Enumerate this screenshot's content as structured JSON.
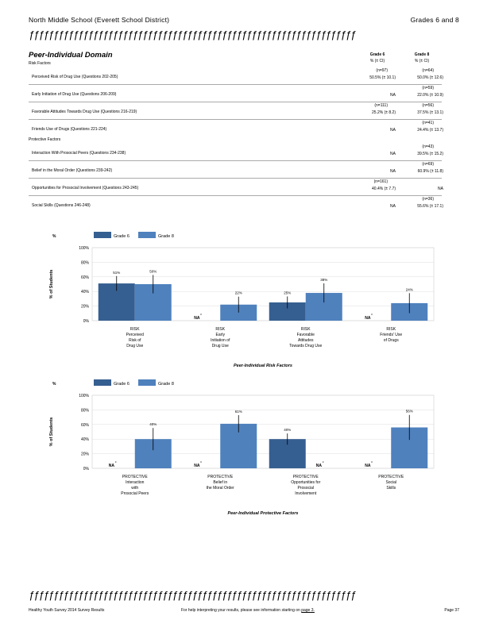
{
  "header": {
    "school": "North Middle School (Everett School District)",
    "grades": "Grades 6 and 8",
    "rule_glyphs": "ƒƒƒƒƒƒƒƒƒƒƒƒƒƒƒƒƒƒƒƒƒƒƒƒƒƒƒƒƒƒƒƒƒƒƒƒƒƒƒƒƒƒƒƒƒƒƒƒƒƒƒƒƒƒƒƒƒƒƒƒƒƒƒƒƒƒ"
  },
  "section": {
    "title": "Peer-Individual Domain",
    "risk_label": "Risk Factors",
    "protective_label": "Protective Factors",
    "col_grade6": "Grade 6",
    "col_grade8": "Grade 8",
    "col_sub": "% (± CI)"
  },
  "rows": [
    {
      "label": "Perceived Risk of Drug Use (Questions 202-205)",
      "g6_n": "(n=97)",
      "g6": "50.5% (± 10.1)",
      "g8_n": "(n=64)",
      "g8": "50.0% (± 12.6)"
    },
    {
      "label": "Early Initiation of Drug Use (Questions 206-209)",
      "g6_n": "",
      "g6": "NA",
      "g8_n": "(n=59)",
      "g8": "22.0% (± 10.9)"
    },
    {
      "label": "Favorable Attitudes Towards Drug Use (Questions 216-219)",
      "g6_n": "(n=111)",
      "g6": "25.2% (± 8.2)",
      "g8_n": "(n=56)",
      "g8": "37.5% (± 13.1)"
    },
    {
      "label": "Friends Use of Drugs (Questions 221-224)",
      "g6_n": "",
      "g6": "NA",
      "g8_n": "(n=41)",
      "g8": "24.4% (± 13.7)"
    },
    {
      "label": "Interaction With Prosocial Peers (Questions 234-238)",
      "g6_n": "",
      "g6": "NA",
      "g8_n": "(n=43)",
      "g8": "39.5% (± 15.2)"
    },
    {
      "label": "Belief in the Moral Order (Questions 239-242)",
      "g6_n": "",
      "g6": "NA",
      "g8_n": "(n=69)",
      "g8": "60.9% (± 11.8)"
    },
    {
      "label": "Opportunities for Prosocial Involvement (Questions 243-245)",
      "g6_n": "(n=161)",
      "g6": "40.4% (± 7.7)",
      "g8_n": "",
      "g8": "NA"
    },
    {
      "label": "Social Skills (Questions 246-248)",
      "g6_n": "",
      "g6": "NA",
      "g8_n": "(n=36)",
      "g8": "55.6% (± 17.1)"
    }
  ],
  "chart_data": [
    {
      "type": "bar",
      "title": "",
      "xlabel": "Peer-Individual Risk Factors",
      "ylabel": "% of Students",
      "ylim": [
        0,
        100
      ],
      "yticks": [
        "0%",
        "20%",
        "40%",
        "60%",
        "80%",
        "100%"
      ],
      "categories": [
        [
          "RISK",
          "Perceived",
          "Risk of",
          "Drug Use"
        ],
        [
          "RISK",
          "Early",
          "Initiation of",
          "Drug Use"
        ],
        [
          "RISK",
          "Favorable",
          "Attitudes",
          "Towards Drug Use"
        ],
        [
          "RISK",
          "Friends' Use",
          "of Drugs"
        ]
      ],
      "series": [
        {
          "name": "Grade 6",
          "color": "#365f91",
          "values": [
            51,
            null,
            25,
            null
          ],
          "ci": [
            10.1,
            null,
            8.2,
            null
          ],
          "labels": [
            "51%",
            "NA",
            "25%",
            "NA"
          ]
        },
        {
          "name": "Grade 8",
          "color": "#4f81bd",
          "values": [
            50,
            22,
            38,
            24
          ],
          "ci": [
            12.6,
            10.9,
            13.1,
            13.7
          ],
          "labels": [
            "50%",
            "22%",
            "38%",
            "24%"
          ]
        }
      ]
    },
    {
      "type": "bar",
      "title": "",
      "xlabel": "Peer-Individual Protective Factors",
      "ylabel": "% of Students",
      "ylim": [
        0,
        100
      ],
      "yticks": [
        "0%",
        "20%",
        "40%",
        "60%",
        "80%",
        "100%"
      ],
      "categories": [
        [
          "PROTECTIVE",
          "Interaction",
          "with",
          "Prosocial Peers"
        ],
        [
          "PROTECTIVE",
          "Belief in",
          "the Moral Order"
        ],
        [
          "PROTECTIVE",
          "Opportunities for",
          "Prosocial",
          "Involvement"
        ],
        [
          "PROTECTIVE",
          "Social",
          "Skills"
        ]
      ],
      "series": [
        {
          "name": "Grade 6",
          "color": "#365f91",
          "values": [
            null,
            null,
            40,
            null
          ],
          "ci": [
            null,
            null,
            7.7,
            null
          ],
          "labels": [
            "NA",
            "NA",
            "40%",
            "NA"
          ]
        },
        {
          "name": "Grade 8",
          "color": "#4f81bd",
          "values": [
            40,
            61,
            null,
            56
          ],
          "ci": [
            15.2,
            11.8,
            null,
            17.1
          ],
          "labels": [
            "40%",
            "61%",
            "NA",
            "56%"
          ]
        }
      ]
    }
  ],
  "footer": {
    "left": "Healthy Youth Survey 2014 Survey Results",
    "middle_prefix": "For help interpreting your results, please see information starting on",
    "middle_link": "page 3.",
    "right": "Page 37"
  }
}
